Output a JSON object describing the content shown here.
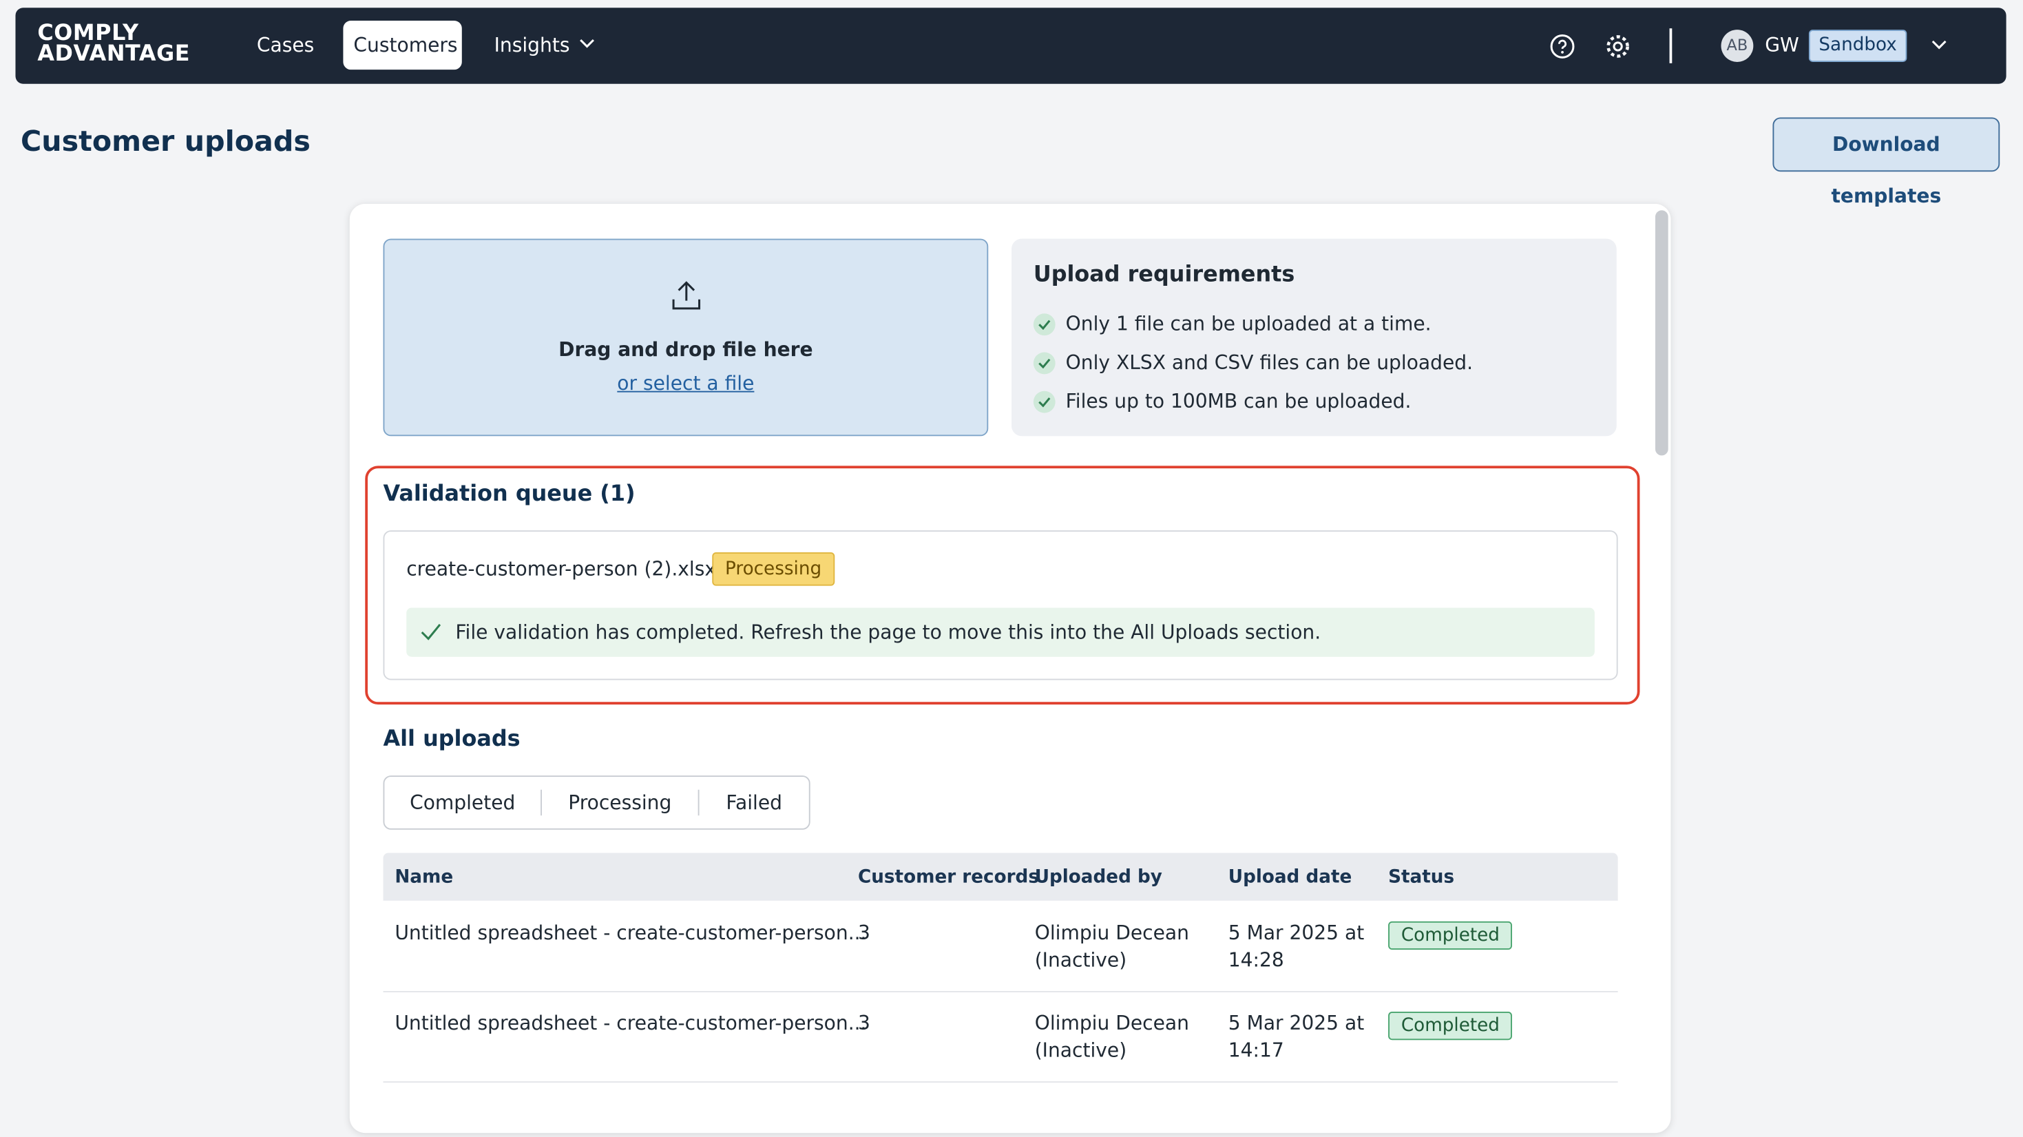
{
  "nav": {
    "logo": [
      "COMPLY",
      "ADVANTAGE"
    ],
    "items": [
      "Cases",
      "Customers",
      "Insights"
    ],
    "avatar": "AB",
    "user": "GW",
    "environment": "Sandbox"
  },
  "header": {
    "title": "Customer uploads",
    "button": "Download templates"
  },
  "upload": {
    "title": "Drag and drop file here",
    "link": "or select a file"
  },
  "requirements": {
    "title": "Upload requirements",
    "items": [
      "Only 1 file can be uploaded at a time.",
      "Only XLSX and CSV files can be uploaded.",
      "Files up to 100MB can be uploaded."
    ]
  },
  "validation_queue": {
    "title": "Validation queue (1)",
    "file": "create-customer-person (2).xlsx",
    "status": "Processing",
    "message": "File validation has completed. Refresh the page to move this into the All Uploads section."
  },
  "all_uploads": {
    "title": "All uploads",
    "tabs": [
      "Completed",
      "Processing",
      "Failed"
    ],
    "table": {
      "columns": [
        "Name",
        "Customer records",
        "Uploaded by",
        "Upload date",
        "Status"
      ],
      "rows": [
        [
          "Untitled spreadsheet - create-customer-person...",
          3,
          "Olimpiu Decean (Inactive)",
          "5 Mar 2025 at 14:28",
          "Completed"
        ],
        [
          "Untitled spreadsheet - create-customer-person...",
          3,
          "Olimpiu Decean (Inactive)",
          "5 Mar 2025 at 14:17",
          "Completed"
        ]
      ]
    }
  }
}
